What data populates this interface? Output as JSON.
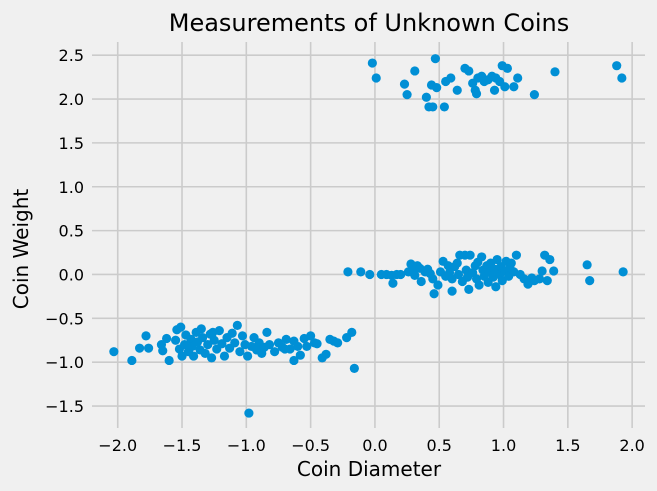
{
  "chart_data": {
    "type": "scatter",
    "title": "Measurements of Unknown Coins",
    "xlabel": "Coin Diameter",
    "ylabel": "Coin Weight",
    "xlim": [
      -2.2,
      2.1
    ],
    "ylim": [
      -1.75,
      2.65
    ],
    "xticks": [
      -2.0,
      -1.5,
      -1.0,
      -0.5,
      0.0,
      0.5,
      1.0,
      1.5,
      2.0
    ],
    "xtick_labels": [
      "−2.0",
      "−1.5",
      "−1.0",
      "−0.5",
      "0.0",
      "0.5",
      "1.0",
      "1.5",
      "2.0"
    ],
    "yticks": [
      -1.5,
      -1.0,
      -0.5,
      0.0,
      0.5,
      1.0,
      1.5,
      2.0,
      2.5
    ],
    "ytick_labels": [
      "−1.5",
      "−1.0",
      "−0.5",
      "0.0",
      "0.5",
      "1.0",
      "1.5",
      "2.0",
      "2.5"
    ],
    "grid": true,
    "marker_color": "#008fd5",
    "points": [
      {
        "x": -0.02,
        "y": 2.41
      },
      {
        "x": 0.01,
        "y": 2.24
      },
      {
        "x": 0.23,
        "y": 2.17
      },
      {
        "x": 0.25,
        "y": 2.05
      },
      {
        "x": 0.31,
        "y": 2.32
      },
      {
        "x": 0.4,
        "y": 2.02
      },
      {
        "x": 0.42,
        "y": 1.91
      },
      {
        "x": 0.45,
        "y": 1.91
      },
      {
        "x": 0.44,
        "y": 2.16
      },
      {
        "x": 0.47,
        "y": 2.46
      },
      {
        "x": 0.48,
        "y": 2.13
      },
      {
        "x": 0.54,
        "y": 1.91
      },
      {
        "x": 0.55,
        "y": 2.2
      },
      {
        "x": 0.59,
        "y": 2.24
      },
      {
        "x": 0.64,
        "y": 2.1
      },
      {
        "x": 0.7,
        "y": 2.35
      },
      {
        "x": 0.73,
        "y": 2.32
      },
      {
        "x": 0.76,
        "y": 2.18
      },
      {
        "x": 0.78,
        "y": 2.1
      },
      {
        "x": 0.79,
        "y": 2.06
      },
      {
        "x": 0.8,
        "y": 2.24
      },
      {
        "x": 0.83,
        "y": 2.26
      },
      {
        "x": 0.85,
        "y": 2.2
      },
      {
        "x": 0.88,
        "y": 2.22
      },
      {
        "x": 0.91,
        "y": 2.26
      },
      {
        "x": 0.93,
        "y": 2.1
      },
      {
        "x": 0.94,
        "y": 2.24
      },
      {
        "x": 0.97,
        "y": 2.2
      },
      {
        "x": 0.99,
        "y": 2.38
      },
      {
        "x": 1.01,
        "y": 2.14
      },
      {
        "x": 1.03,
        "y": 2.35
      },
      {
        "x": 1.08,
        "y": 2.14
      },
      {
        "x": 1.11,
        "y": 2.24
      },
      {
        "x": 1.24,
        "y": 2.05
      },
      {
        "x": 1.4,
        "y": 2.31
      },
      {
        "x": 1.88,
        "y": 2.38
      },
      {
        "x": 1.92,
        "y": 2.24
      },
      {
        "x": -0.21,
        "y": 0.03
      },
      {
        "x": -0.11,
        "y": 0.03
      },
      {
        "x": -0.04,
        "y": 0.0
      },
      {
        "x": 0.05,
        "y": 0.0
      },
      {
        "x": 0.09,
        "y": 0.0
      },
      {
        "x": 0.13,
        "y": -0.01
      },
      {
        "x": 0.14,
        "y": -0.1
      },
      {
        "x": 0.17,
        "y": 0.0
      },
      {
        "x": 0.2,
        "y": 0.0
      },
      {
        "x": 0.26,
        "y": 0.03
      },
      {
        "x": 0.28,
        "y": 0.12
      },
      {
        "x": 0.3,
        "y": 0.05
      },
      {
        "x": 0.31,
        "y": -0.01
      },
      {
        "x": 0.33,
        "y": 0.1
      },
      {
        "x": 0.35,
        "y": 0.07
      },
      {
        "x": 0.36,
        "y": -0.08
      },
      {
        "x": 0.39,
        "y": 0.03
      },
      {
        "x": 0.41,
        "y": 0.06
      },
      {
        "x": 0.43,
        "y": 0.01
      },
      {
        "x": 0.45,
        "y": -0.05
      },
      {
        "x": 0.46,
        "y": -0.22
      },
      {
        "x": 0.49,
        "y": -0.12
      },
      {
        "x": 0.51,
        "y": 0.03
      },
      {
        "x": 0.53,
        "y": 0.15
      },
      {
        "x": 0.55,
        "y": -0.02
      },
      {
        "x": 0.57,
        "y": 0.1
      },
      {
        "x": 0.58,
        "y": 0.02
      },
      {
        "x": 0.6,
        "y": -0.05
      },
      {
        "x": 0.6,
        "y": -0.19
      },
      {
        "x": 0.62,
        "y": 0.09
      },
      {
        "x": 0.64,
        "y": 0.13
      },
      {
        "x": 0.65,
        "y": 0.0
      },
      {
        "x": 0.66,
        "y": 0.22
      },
      {
        "x": 0.68,
        "y": -0.08
      },
      {
        "x": 0.7,
        "y": 0.22
      },
      {
        "x": 0.71,
        "y": 0.05
      },
      {
        "x": 0.72,
        "y": -0.03
      },
      {
        "x": 0.73,
        "y": -0.17
      },
      {
        "x": 0.74,
        "y": 0.22
      },
      {
        "x": 0.76,
        "y": 0.02
      },
      {
        "x": 0.78,
        "y": 0.1
      },
      {
        "x": 0.79,
        "y": -0.05
      },
      {
        "x": 0.8,
        "y": 0.14
      },
      {
        "x": 0.81,
        "y": -0.12
      },
      {
        "x": 0.83,
        "y": 0.2
      },
      {
        "x": 0.84,
        "y": 0.05
      },
      {
        "x": 0.85,
        "y": -0.02
      },
      {
        "x": 0.87,
        "y": 0.1
      },
      {
        "x": 0.88,
        "y": -0.09
      },
      {
        "x": 0.89,
        "y": 0.03
      },
      {
        "x": 0.9,
        "y": 0.13
      },
      {
        "x": 0.92,
        "y": -0.03
      },
      {
        "x": 0.93,
        "y": 0.06
      },
      {
        "x": 0.94,
        "y": -0.14
      },
      {
        "x": 0.95,
        "y": 0.17
      },
      {
        "x": 0.97,
        "y": 0.0
      },
      {
        "x": 0.98,
        "y": 0.09
      },
      {
        "x": 0.99,
        "y": -0.07
      },
      {
        "x": 1.01,
        "y": 0.04
      },
      {
        "x": 1.02,
        "y": 0.15
      },
      {
        "x": 1.04,
        "y": -0.02
      },
      {
        "x": 1.05,
        "y": 0.08
      },
      {
        "x": 1.06,
        "y": 0.13
      },
      {
        "x": 1.08,
        "y": 0.03
      },
      {
        "x": 1.1,
        "y": 0.22
      },
      {
        "x": 1.13,
        "y": 0.0
      },
      {
        "x": 1.16,
        "y": -0.05
      },
      {
        "x": 1.19,
        "y": -0.11
      },
      {
        "x": 1.22,
        "y": -0.04
      },
      {
        "x": 1.24,
        "y": -0.07
      },
      {
        "x": 1.28,
        "y": -0.05
      },
      {
        "x": 1.3,
        "y": 0.04
      },
      {
        "x": 1.32,
        "y": 0.22
      },
      {
        "x": 1.34,
        "y": -0.07
      },
      {
        "x": 1.36,
        "y": 0.17
      },
      {
        "x": 1.39,
        "y": 0.04
      },
      {
        "x": 1.65,
        "y": 0.11
      },
      {
        "x": 1.67,
        "y": -0.07
      },
      {
        "x": 1.93,
        "y": 0.03
      },
      {
        "x": -2.03,
        "y": -0.88
      },
      {
        "x": -1.89,
        "y": -0.98
      },
      {
        "x": -1.83,
        "y": -0.84
      },
      {
        "x": -1.78,
        "y": -0.7
      },
      {
        "x": -1.76,
        "y": -0.84
      },
      {
        "x": -1.66,
        "y": -0.8
      },
      {
        "x": -1.62,
        "y": -0.73
      },
      {
        "x": -1.6,
        "y": -0.98
      },
      {
        "x": -1.55,
        "y": -0.75
      },
      {
        "x": -1.54,
        "y": -0.63
      },
      {
        "x": -1.52,
        "y": -0.85
      },
      {
        "x": -1.51,
        "y": -0.6
      },
      {
        "x": -1.5,
        "y": -0.93
      },
      {
        "x": -1.48,
        "y": -0.8
      },
      {
        "x": -1.47,
        "y": -0.69
      },
      {
        "x": -1.45,
        "y": -0.88
      },
      {
        "x": -1.43,
        "y": -0.74
      },
      {
        "x": -1.42,
        "y": -0.82
      },
      {
        "x": -1.41,
        "y": -0.93
      },
      {
        "x": -1.39,
        "y": -0.66
      },
      {
        "x": -1.38,
        "y": -0.77
      },
      {
        "x": -1.36,
        "y": -0.86
      },
      {
        "x": -1.35,
        "y": -0.62
      },
      {
        "x": -1.34,
        "y": -0.72
      },
      {
        "x": -1.32,
        "y": -0.9
      },
      {
        "x": -1.3,
        "y": -0.8
      },
      {
        "x": -1.28,
        "y": -0.68
      },
      {
        "x": -1.27,
        "y": -0.95
      },
      {
        "x": -1.25,
        "y": -0.75
      },
      {
        "x": -1.23,
        "y": -0.85
      },
      {
        "x": -1.21,
        "y": -0.64
      },
      {
        "x": -1.19,
        "y": -0.79
      },
      {
        "x": -1.17,
        "y": -0.93
      },
      {
        "x": -1.15,
        "y": -0.72
      },
      {
        "x": -1.13,
        "y": -0.84
      },
      {
        "x": -1.11,
        "y": -0.67
      },
      {
        "x": -1.09,
        "y": -0.78
      },
      {
        "x": -1.07,
        "y": -0.58
      },
      {
        "x": -1.05,
        "y": -0.88
      },
      {
        "x": -1.03,
        "y": -0.7
      },
      {
        "x": -1.01,
        "y": -0.8
      },
      {
        "x": -0.99,
        "y": -0.93
      },
      {
        "x": -0.98,
        "y": -1.58
      },
      {
        "x": -0.96,
        "y": -0.82
      },
      {
        "x": -0.94,
        "y": -0.72
      },
      {
        "x": -0.92,
        "y": -0.86
      },
      {
        "x": -0.9,
        "y": -0.78
      },
      {
        "x": -0.88,
        "y": -0.9
      },
      {
        "x": -0.86,
        "y": -0.83
      },
      {
        "x": -0.84,
        "y": -0.66
      },
      {
        "x": -0.82,
        "y": -0.8
      },
      {
        "x": -0.78,
        "y": -0.88
      },
      {
        "x": -0.75,
        "y": -0.78
      },
      {
        "x": -0.72,
        "y": -0.83
      },
      {
        "x": -0.69,
        "y": -0.74
      },
      {
        "x": -0.66,
        "y": -0.85
      },
      {
        "x": -0.63,
        "y": -0.76
      },
      {
        "x": -0.6,
        "y": -0.82
      },
      {
        "x": -0.58,
        "y": -0.92
      },
      {
        "x": -0.55,
        "y": -0.73
      },
      {
        "x": -0.53,
        "y": -0.82
      },
      {
        "x": -0.5,
        "y": -0.7
      },
      {
        "x": -0.47,
        "y": -0.78
      },
      {
        "x": -0.41,
        "y": -0.95
      },
      {
        "x": -0.38,
        "y": -0.91
      },
      {
        "x": -0.35,
        "y": -0.74
      },
      {
        "x": -0.32,
        "y": -0.76
      },
      {
        "x": -0.29,
        "y": -0.78
      },
      {
        "x": -0.22,
        "y": -0.72
      },
      {
        "x": -0.18,
        "y": -0.66
      },
      {
        "x": -0.16,
        "y": -1.07
      },
      {
        "x": -1.65,
        "y": -0.87
      },
      {
        "x": -1.26,
        "y": -0.66
      },
      {
        "x": -0.7,
        "y": -0.85
      },
      {
        "x": -0.45,
        "y": -0.79
      },
      {
        "x": -0.63,
        "y": -0.98
      }
    ]
  }
}
